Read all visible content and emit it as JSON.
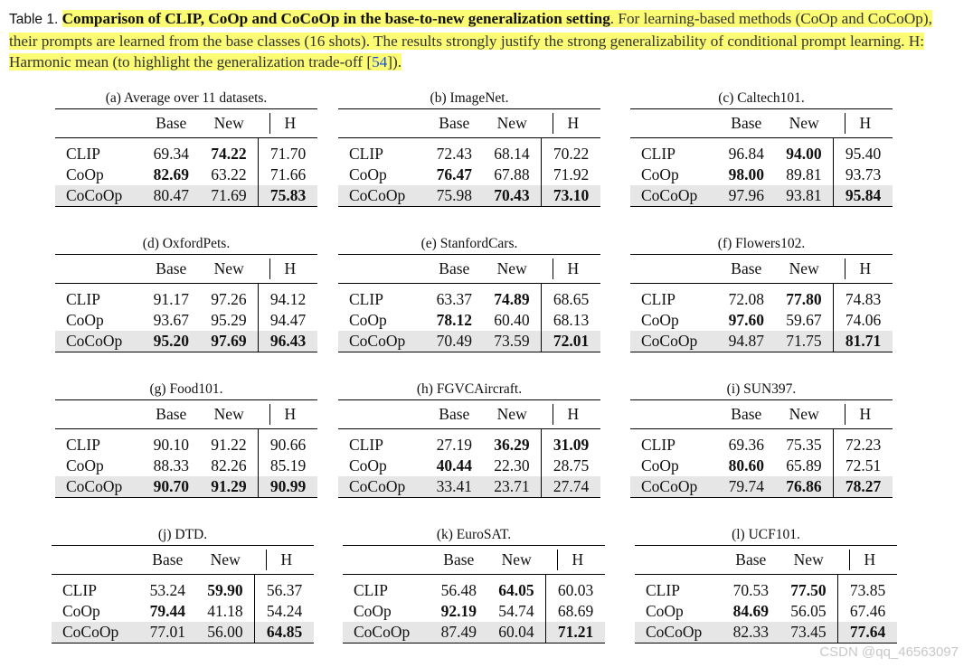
{
  "caption": {
    "label": "Table 1.",
    "title": "Comparison of CLIP, CoOp and CoCoOp in the base-to-new generalization setting",
    "text": ". For learning-based methods (CoOp and CoCoOp), their prompts are learned from the base classes (16 shots). The results strongly justify the strong generalizability of conditional prompt learning. H: Harmonic mean (to highlight the generalization trade-off [",
    "ref": "54",
    "end": "])."
  },
  "columns": [
    "Base",
    "New",
    "H"
  ],
  "tables": [
    {
      "title": "(a) Average over 11 datasets.",
      "rows": [
        {
          "method": "CLIP",
          "base": "69.34",
          "new": "74.22",
          "h": "71.70"
        },
        {
          "method": "CoOp",
          "base": "82.69",
          "new": "63.22",
          "h": "71.66"
        },
        {
          "method": "CoCoOp",
          "base": "80.47",
          "new": "71.69",
          "h": "75.83"
        }
      ]
    },
    {
      "title": "(b) ImageNet.",
      "rows": [
        {
          "method": "CLIP",
          "base": "72.43",
          "new": "68.14",
          "h": "70.22"
        },
        {
          "method": "CoOp",
          "base": "76.47",
          "new": "67.88",
          "h": "71.92"
        },
        {
          "method": "CoCoOp",
          "base": "75.98",
          "new": "70.43",
          "h": "73.10"
        }
      ]
    },
    {
      "title": "(c) Caltech101.",
      "rows": [
        {
          "method": "CLIP",
          "base": "96.84",
          "new": "94.00",
          "h": "95.40"
        },
        {
          "method": "CoOp",
          "base": "98.00",
          "new": "89.81",
          "h": "93.73"
        },
        {
          "method": "CoCoOp",
          "base": "97.96",
          "new": "93.81",
          "h": "95.84"
        }
      ]
    },
    {
      "title": "(d) OxfordPets.",
      "rows": [
        {
          "method": "CLIP",
          "base": "91.17",
          "new": "97.26",
          "h": "94.12"
        },
        {
          "method": "CoOp",
          "base": "93.67",
          "new": "95.29",
          "h": "94.47"
        },
        {
          "method": "CoCoOp",
          "base": "95.20",
          "new": "97.69",
          "h": "96.43"
        }
      ]
    },
    {
      "title": "(e) StanfordCars.",
      "rows": [
        {
          "method": "CLIP",
          "base": "63.37",
          "new": "74.89",
          "h": "68.65"
        },
        {
          "method": "CoOp",
          "base": "78.12",
          "new": "60.40",
          "h": "68.13"
        },
        {
          "method": "CoCoOp",
          "base": "70.49",
          "new": "73.59",
          "h": "72.01"
        }
      ]
    },
    {
      "title": "(f) Flowers102.",
      "rows": [
        {
          "method": "CLIP",
          "base": "72.08",
          "new": "77.80",
          "h": "74.83"
        },
        {
          "method": "CoOp",
          "base": "97.60",
          "new": "59.67",
          "h": "74.06"
        },
        {
          "method": "CoCoOp",
          "base": "94.87",
          "new": "71.75",
          "h": "81.71"
        }
      ]
    },
    {
      "title": "(g) Food101.",
      "rows": [
        {
          "method": "CLIP",
          "base": "90.10",
          "new": "91.22",
          "h": "90.66"
        },
        {
          "method": "CoOp",
          "base": "88.33",
          "new": "82.26",
          "h": "85.19"
        },
        {
          "method": "CoCoOp",
          "base": "90.70",
          "new": "91.29",
          "h": "90.99"
        }
      ]
    },
    {
      "title": "(h) FGVCAircraft.",
      "rows": [
        {
          "method": "CLIP",
          "base": "27.19",
          "new": "36.29",
          "h": "31.09"
        },
        {
          "method": "CoOp",
          "base": "40.44",
          "new": "22.30",
          "h": "28.75"
        },
        {
          "method": "CoCoOp",
          "base": "33.41",
          "new": "23.71",
          "h": "27.74"
        }
      ]
    },
    {
      "title": "(i) SUN397.",
      "rows": [
        {
          "method": "CLIP",
          "base": "69.36",
          "new": "75.35",
          "h": "72.23"
        },
        {
          "method": "CoOp",
          "base": "80.60",
          "new": "65.89",
          "h": "72.51"
        },
        {
          "method": "CoCoOp",
          "base": "79.74",
          "new": "76.86",
          "h": "78.27"
        }
      ]
    },
    {
      "title": "(j) DTD.",
      "rows": [
        {
          "method": "CLIP",
          "base": "53.24",
          "new": "59.90",
          "h": "56.37"
        },
        {
          "method": "CoOp",
          "base": "79.44",
          "new": "41.18",
          "h": "54.24"
        },
        {
          "method": "CoCoOp",
          "base": "77.01",
          "new": "56.00",
          "h": "64.85"
        }
      ]
    },
    {
      "title": "(k) EuroSAT.",
      "rows": [
        {
          "method": "CLIP",
          "base": "56.48",
          "new": "64.05",
          "h": "60.03"
        },
        {
          "method": "CoOp",
          "base": "92.19",
          "new": "54.74",
          "h": "68.69"
        },
        {
          "method": "CoCoOp",
          "base": "87.49",
          "new": "60.04",
          "h": "71.21"
        }
      ]
    },
    {
      "title": "(l) UCF101.",
      "rows": [
        {
          "method": "CLIP",
          "base": "70.53",
          "new": "77.50",
          "h": "73.85"
        },
        {
          "method": "CoOp",
          "base": "84.69",
          "new": "56.05",
          "h": "67.46"
        },
        {
          "method": "CoCoOp",
          "base": "82.33",
          "new": "73.45",
          "h": "77.64"
        }
      ]
    }
  ],
  "watermark": "CSDN @qq_46563097"
}
